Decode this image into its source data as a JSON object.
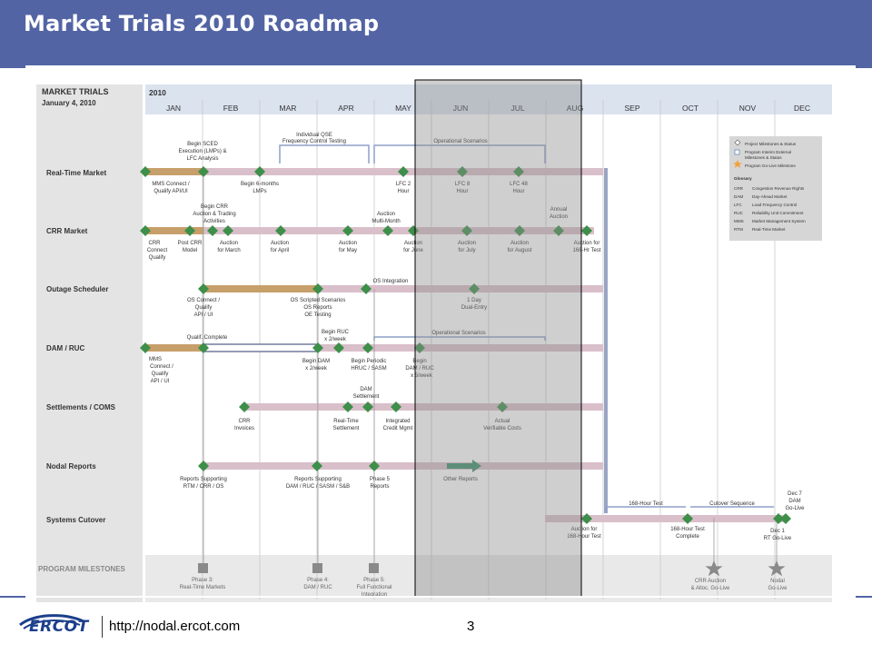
{
  "slide": {
    "title": "Market Trials 2010 Roadmap"
  },
  "header": {
    "line1": "MARKET TRIALS",
    "line2": "January 4, 2010",
    "year": "2010"
  },
  "months": [
    "JAN",
    "FEB",
    "MAR",
    "APR",
    "MAY",
    "JUN",
    "JUL",
    "AUG",
    "SEP",
    "OCT",
    "NOV",
    "DEC"
  ],
  "rows": [
    "Real-Time Market",
    "CRR Market",
    "Outage Scheduler",
    "DAM / RUC",
    "Settlements / COMS",
    "Nodal Reports",
    "Systems Cutover",
    "PROGRAM MILESTONES"
  ],
  "labels": {
    "rt_scedA": "Begin SCED",
    "rt_scedB": "Execution (LMPs) &",
    "rt_scedC": "LFC Analysis",
    "rt_qseA": "Individual QSE",
    "rt_qseB": "Frequency Control Testing",
    "rt_ops": "Operational Scenarios",
    "rt_mmsA": "MMS Connect /",
    "rt_mmsB": "Qualify API/UI",
    "rt_6moA": "Begin 6-months",
    "rt_6moB": "LMPs",
    "rt_lfc2A": "LFC 2",
    "rt_lfc2B": "Hour",
    "rt_lfc8A": "LFC 8",
    "rt_lfc8B": "Hour",
    "rt_lfc48A": "LFC 48",
    "rt_lfc48B": "Hour",
    "crr_beginA": "Begin CRR",
    "crr_beginB": "Auction & Trading",
    "crr_beginC": "Activities",
    "crr_multiA": "Auction",
    "crr_multiB": "Multi-Month",
    "crr_annualA": "Annual",
    "crr_annualB": "Auction",
    "crr_connA": "CRR",
    "crr_connB": "Connect",
    "crr_connC": "Qualify",
    "crr_postA": "Post CRR",
    "crr_postB": "Model",
    "crr_marA": "Auction",
    "crr_marB": "for March",
    "crr_aprA": "Auction",
    "crr_aprB": "for April",
    "crr_mayA": "Auction",
    "crr_mayB": "for May",
    "crr_junA": "Auction",
    "crr_junB": "for June",
    "crr_julA": "Auction",
    "crr_julB": "for July",
    "crr_augA": "Auction",
    "crr_augB": "for August",
    "crr_168A": "Auction for",
    "crr_168B": "168-Hr Test",
    "os_integration": "OS Integration",
    "os_connA": "OS Connect /",
    "os_connB": "Qualify",
    "os_connC": "API / UI",
    "os_scrA": "OS Scripted Scenarios",
    "os_scrB": "OS Reports",
    "os_scrC": "OE Testing",
    "os_dualA": "1 Day",
    "os_dualB": "Dual-Entry",
    "dam_qual": "Qualif. Complete",
    "dam_rucA": "Begin RUC",
    "dam_rucB": "x 2/week",
    "dam_ops": "Operational Scenarios",
    "dam_mmsA": "MMS",
    "dam_mmsB": "Connect /",
    "dam_mmsC": "Qualify",
    "dam_mmsD": "API / UI",
    "dam_begA": "Begin DAM",
    "dam_begB": "x 2/week",
    "dam_perA": "Begin Periodic",
    "dam_perB": "HRUC / SASM",
    "dam_5wkA": "Begin",
    "dam_5wkB": "DAM / RUC",
    "dam_5wkC": "x 5/week",
    "set_damA": "DAM",
    "set_damB": "Settlement",
    "set_crrA": "CRR",
    "set_crrB": "Invoices",
    "set_rtA": "Real-Time",
    "set_rtB": "Settlement",
    "set_intA": "Integrated",
    "set_intB": "Credit Mgmt",
    "set_actA": "Actual",
    "set_actB": "Verifiable Costs",
    "nr_rtmA": "Reports Supporting",
    "nr_rtmB": "RTM / CRR / OS",
    "nr_damA": "Reports Supporting",
    "nr_damB": "DAM / RUC / SASM / S&B",
    "nr_p5A": "Phase 5",
    "nr_p5B": "Reports",
    "nr_other": "Other Reports",
    "sc_168test": "168-Hour Test",
    "sc_cutover": "Cutover Sequence",
    "sc_dec7A": "Dec 7",
    "sc_dec7B": "DAM",
    "sc_dec7C": "Go-Live",
    "sc_aucA": "Auction for",
    "sc_aucB": "168-Hour Test",
    "sc_168cA": "168-Hour Test",
    "sc_168cB": "Complete",
    "sc_dec1A": "Dec 1",
    "sc_dec1B": "RT Go-Live",
    "pm_p3A": "Phase 3:",
    "pm_p3B": "Real-Time Markets",
    "pm_p4A": "Phase 4:",
    "pm_p4B": "DAM / RUC",
    "pm_p5A": "Phase 5:",
    "pm_p5B": "Full Functional",
    "pm_p5C": "Integration",
    "pm_crrA": "CRR  Auction",
    "pm_crrB": "& Alloc. Go-Live",
    "pm_nodalA": "Nodal",
    "pm_nodalB": "Go-Live"
  },
  "legend": {
    "items": [
      "Project Milestones & Status",
      "Program Interim External",
      "Milestones & Status",
      "Program Go-Live Milestone"
    ],
    "glossary_title": "Glossary",
    "glossary": [
      [
        "CRR",
        "Congestion Revenue Rights"
      ],
      [
        "DAM",
        "Day-Ahead Market"
      ],
      [
        "LFC",
        "Load Frequency Control"
      ],
      [
        "RUC",
        "Reliability Unit Commitment"
      ],
      [
        "MMS",
        "Market Management System"
      ],
      [
        "RTM",
        "Real-Time Market"
      ]
    ]
  },
  "footer": {
    "logo": "ERCOT",
    "url": "http://nodal.ercot.com",
    "page": "3"
  },
  "colors": {
    "brand": "#5264a4",
    "milestone": "#3d8f4a",
    "bar_pink": "#d9bfca",
    "bar_tan": "#c79f6a",
    "highlight": "#b5b5b5"
  }
}
